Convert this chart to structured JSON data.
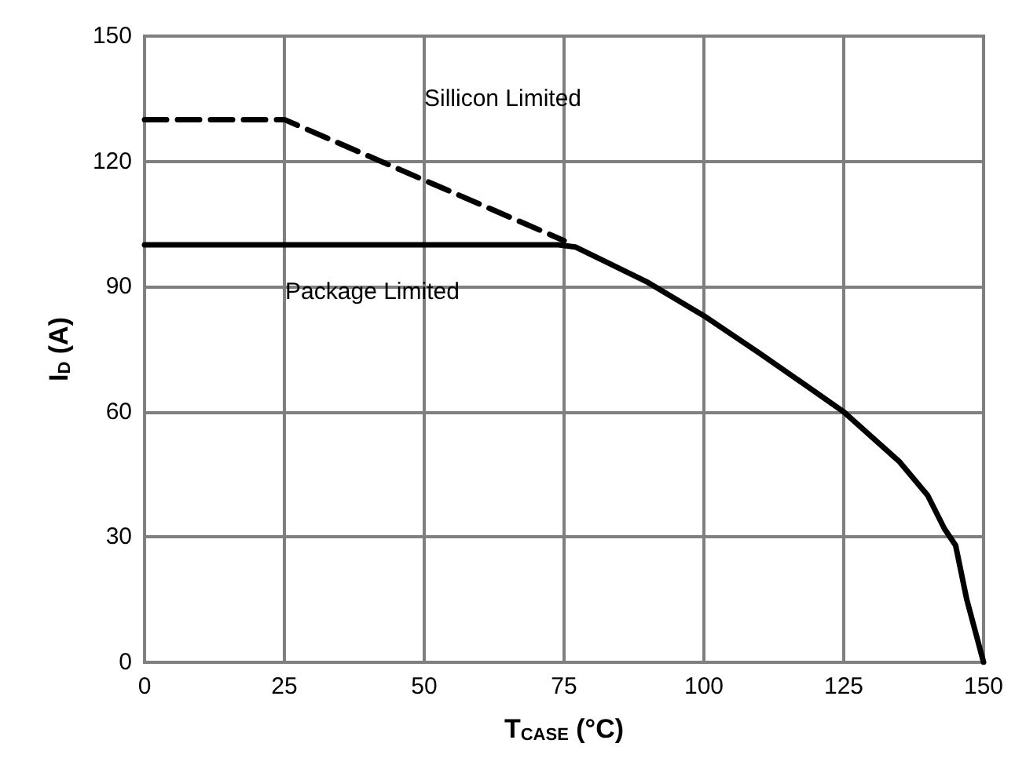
{
  "chart_data": {
    "type": "line",
    "xlabel": "T$_{CASE}$ (°C)",
    "ylabel": "I$_{D}$ (A)",
    "xlim": [
      0,
      150
    ],
    "xticks": [
      0,
      25,
      50,
      75,
      100,
      125,
      150
    ],
    "ylim": [
      0,
      150
    ],
    "yticks": [
      0,
      30,
      60,
      90,
      120,
      150
    ],
    "grid": true,
    "marker": "none",
    "series": [
      {
        "color": "#000000",
        "line_style": "dashed",
        "x": [
          0,
          25,
          75
        ],
        "values": [
          130,
          130,
          101
        ]
      },
      {
        "color": "#000000",
        "line_style": "solid",
        "x": [
          0,
          74,
          77,
          90,
          100,
          110,
          125,
          135,
          140,
          143,
          145,
          147,
          149,
          150
        ],
        "values": [
          100,
          100,
          99.5,
          91,
          83,
          74,
          60,
          48,
          40,
          32,
          28,
          15,
          5,
          0
        ]
      }
    ],
    "annotations": [
      "Sillicon Limited",
      "Package Limited"
    ]
  }
}
